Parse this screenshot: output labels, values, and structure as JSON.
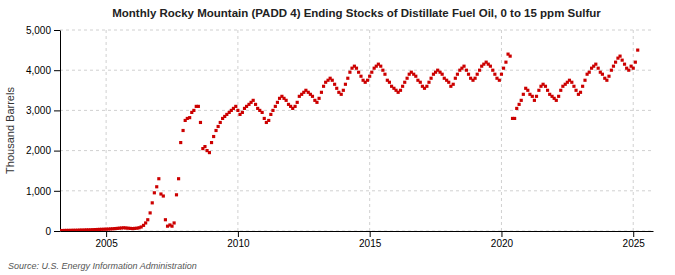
{
  "chart_data": {
    "type": "scatter",
    "title": "Monthly Rocky Mountain (PADD 4) Ending Stocks of Distillate Fuel Oil, 0 to 15 ppm Sulfur",
    "ylabel": "Thousand Barrels",
    "annotations": [
      "Source: U.S. Energy Information Administration"
    ],
    "color": "#cc0000",
    "marker": "square",
    "grid": true,
    "xlim": [
      2003.25,
      2025.75
    ],
    "xticks": [
      2005,
      2010,
      2015,
      2020,
      2025
    ],
    "ylim": [
      0,
      5000
    ],
    "yticks": [
      0,
      {
        "value": 1000,
        "label": "1,000"
      },
      {
        "value": 2000,
        "label": "2,000"
      },
      {
        "value": 3000,
        "label": "3,000"
      },
      {
        "value": 4000,
        "label": "4,000"
      },
      {
        "value": 5000,
        "label": "5,000"
      }
    ],
    "x": [
      2003.25,
      2003.33,
      2003.42,
      2003.5,
      2003.58,
      2003.67,
      2003.75,
      2003.83,
      2003.92,
      2004.0,
      2004.08,
      2004.17,
      2004.25,
      2004.33,
      2004.42,
      2004.5,
      2004.58,
      2004.67,
      2004.75,
      2004.83,
      2004.92,
      2005.0,
      2005.08,
      2005.17,
      2005.25,
      2005.33,
      2005.42,
      2005.5,
      2005.58,
      2005.67,
      2005.75,
      2005.83,
      2005.92,
      2006.0,
      2006.08,
      2006.17,
      2006.25,
      2006.33,
      2006.42,
      2006.5,
      2006.58,
      2006.67,
      2006.75,
      2006.83,
      2006.92,
      2007.0,
      2007.08,
      2007.17,
      2007.25,
      2007.33,
      2007.42,
      2007.5,
      2007.58,
      2007.67,
      2007.75,
      2007.83,
      2007.92,
      2008.0,
      2008.08,
      2008.17,
      2008.25,
      2008.33,
      2008.42,
      2008.5,
      2008.58,
      2008.67,
      2008.75,
      2008.83,
      2008.92,
      2009.0,
      2009.08,
      2009.17,
      2009.25,
      2009.33,
      2009.42,
      2009.5,
      2009.58,
      2009.67,
      2009.75,
      2009.83,
      2009.92,
      2010.0,
      2010.08,
      2010.17,
      2010.25,
      2010.33,
      2010.42,
      2010.5,
      2010.58,
      2010.67,
      2010.75,
      2010.83,
      2010.92,
      2011.0,
      2011.08,
      2011.17,
      2011.25,
      2011.33,
      2011.42,
      2011.5,
      2011.58,
      2011.67,
      2011.75,
      2011.83,
      2011.92,
      2012.0,
      2012.08,
      2012.17,
      2012.25,
      2012.33,
      2012.42,
      2012.5,
      2012.58,
      2012.67,
      2012.75,
      2012.83,
      2012.92,
      2013.0,
      2013.08,
      2013.17,
      2013.25,
      2013.33,
      2013.42,
      2013.5,
      2013.58,
      2013.67,
      2013.75,
      2013.83,
      2013.92,
      2014.0,
      2014.08,
      2014.17,
      2014.25,
      2014.33,
      2014.42,
      2014.5,
      2014.58,
      2014.67,
      2014.75,
      2014.83,
      2014.92,
      2015.0,
      2015.08,
      2015.17,
      2015.25,
      2015.33,
      2015.42,
      2015.5,
      2015.58,
      2015.67,
      2015.75,
      2015.83,
      2015.92,
      2016.0,
      2016.08,
      2016.17,
      2016.25,
      2016.33,
      2016.42,
      2016.5,
      2016.58,
      2016.67,
      2016.75,
      2016.83,
      2016.92,
      2017.0,
      2017.08,
      2017.17,
      2017.25,
      2017.33,
      2017.42,
      2017.5,
      2017.58,
      2017.67,
      2017.75,
      2017.83,
      2017.92,
      2018.0,
      2018.08,
      2018.17,
      2018.25,
      2018.33,
      2018.42,
      2018.5,
      2018.58,
      2018.67,
      2018.75,
      2018.83,
      2018.92,
      2019.0,
      2019.08,
      2019.17,
      2019.25,
      2019.33,
      2019.42,
      2019.5,
      2019.58,
      2019.67,
      2019.75,
      2019.83,
      2019.92,
      2020.0,
      2020.08,
      2020.17,
      2020.25,
      2020.33,
      2020.42,
      2020.5,
      2020.58,
      2020.67,
      2020.75,
      2020.83,
      2020.92,
      2021.0,
      2021.08,
      2021.17,
      2021.25,
      2021.33,
      2021.42,
      2021.5,
      2021.58,
      2021.67,
      2021.75,
      2021.83,
      2021.92,
      2022.0,
      2022.08,
      2022.17,
      2022.25,
      2022.33,
      2022.42,
      2022.5,
      2022.58,
      2022.67,
      2022.75,
      2022.83,
      2022.92,
      2023.0,
      2023.08,
      2023.17,
      2023.25,
      2023.33,
      2023.42,
      2023.5,
      2023.58,
      2023.67,
      2023.75,
      2023.83,
      2023.92,
      2024.0,
      2024.08,
      2024.17,
      2024.25,
      2024.33,
      2024.42,
      2024.5,
      2024.58,
      2024.67,
      2024.75,
      2024.83,
      2024.92,
      2025.0,
      2025.08,
      2025.17
    ],
    "values": [
      10,
      12,
      14,
      15,
      16,
      17,
      18,
      19,
      20,
      22,
      24,
      25,
      27,
      28,
      30,
      32,
      35,
      38,
      40,
      42,
      44,
      46,
      48,
      52,
      55,
      60,
      65,
      70,
      75,
      80,
      75,
      70,
      65,
      60,
      65,
      70,
      80,
      100,
      140,
      200,
      280,
      450,
      700,
      950,
      1100,
      1300,
      920,
      870,
      280,
      120,
      150,
      120,
      200,
      900,
      1300,
      2200,
      2500,
      2750,
      2800,
      2820,
      2950,
      3000,
      3100,
      3100,
      2700,
      2050,
      2100,
      2000,
      1950,
      2200,
      2350,
      2500,
      2600,
      2700,
      2800,
      2850,
      2900,
      2950,
      3000,
      3050,
      3100,
      3000,
      2900,
      2950,
      3050,
      3100,
      3150,
      3200,
      3250,
      3150,
      3050,
      3000,
      2950,
      2800,
      2700,
      2750,
      2900,
      3000,
      3100,
      3200,
      3300,
      3350,
      3300,
      3250,
      3150,
      3100,
      3050,
      3100,
      3200,
      3350,
      3400,
      3450,
      3500,
      3450,
      3400,
      3350,
      3250,
      3200,
      3300,
      3450,
      3600,
      3700,
      3750,
      3800,
      3750,
      3650,
      3550,
      3450,
      3400,
      3500,
      3650,
      3800,
      3950,
      4050,
      4100,
      4050,
      3950,
      3850,
      3750,
      3700,
      3750,
      3850,
      3950,
      4050,
      4100,
      4150,
      4100,
      4000,
      3900,
      3750,
      3700,
      3600,
      3550,
      3500,
      3450,
      3500,
      3600,
      3700,
      3800,
      3900,
      3950,
      3900,
      3850,
      3750,
      3700,
      3600,
      3550,
      3600,
      3700,
      3800,
      3900,
      3950,
      4000,
      3950,
      3900,
      3800,
      3750,
      3700,
      3600,
      3650,
      3800,
      3900,
      4000,
      4050,
      4100,
      4000,
      3900,
      3800,
      3750,
      3800,
      3900,
      4000,
      4100,
      4150,
      4200,
      4150,
      4100,
      4000,
      3900,
      3800,
      3750,
      3900,
      4050,
      4200,
      4400,
      4350,
      2800,
      2800,
      3050,
      3150,
      3250,
      3400,
      3550,
      3500,
      3400,
      3350,
      3250,
      3350,
      3500,
      3600,
      3650,
      3600,
      3500,
      3400,
      3350,
      3300,
      3250,
      3350,
      3500,
      3600,
      3650,
      3700,
      3750,
      3700,
      3600,
      3500,
      3400,
      3450,
      3600,
      3750,
      3900,
      3950,
      4050,
      4100,
      4150,
      4050,
      3950,
      3900,
      3800,
      3750,
      3850,
      4000,
      4100,
      4200,
      4300,
      4350,
      4250,
      4150,
      4050,
      4000,
      4100,
      4050,
      4200,
      4500
    ]
  }
}
